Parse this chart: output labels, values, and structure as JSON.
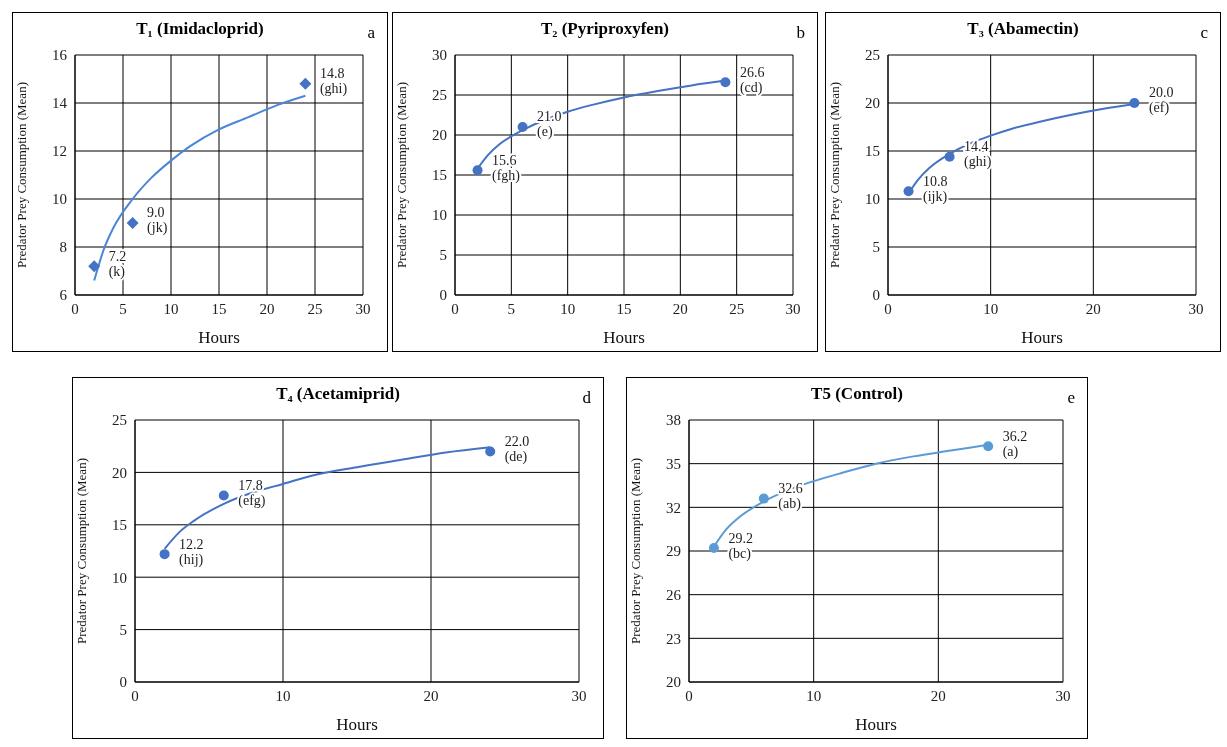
{
  "chart_data": [
    {
      "type": "scatter",
      "title": "T₁ (Imidacloprid)",
      "annotations": [
        "a"
      ],
      "xlabel": "Hours",
      "ylabel": "Predator Prey Consumption (Mean)",
      "x": [
        2,
        6,
        24
      ],
      "xlim": [
        0,
        30
      ],
      "xticks": [
        0,
        5,
        10,
        15,
        20,
        25,
        30
      ],
      "ylim": [
        6,
        16
      ],
      "yticks": [
        6,
        8,
        10,
        12,
        14,
        16
      ],
      "grid": true,
      "series": [
        {
          "color": "#4472c4",
          "marker": "diamond",
          "values": [
            7.2,
            9.0,
            14.8
          ],
          "value_labels": [
            "7.2\n(k)",
            "9.0\n(jk)",
            "14.8\n(ghi)"
          ]
        },
        {
          "type": "line",
          "marker": "none",
          "color": "#4a86d8",
          "x": [
            2,
            3,
            4,
            6,
            8,
            10,
            12,
            15,
            18,
            21,
            24
          ],
          "values": [
            6.6,
            7.9,
            8.8,
            10.0,
            10.9,
            11.6,
            12.2,
            12.9,
            13.4,
            13.9,
            14.3
          ]
        }
      ]
    },
    {
      "type": "scatter",
      "title": "T₂ (Pyriproxyfen)",
      "annotations": [
        "b"
      ],
      "xlabel": "Hours",
      "ylabel": "Predator Prey Consumption (Mean)",
      "x": [
        2,
        6,
        24
      ],
      "xlim": [
        0,
        30
      ],
      "xticks": [
        0,
        5,
        10,
        15,
        20,
        25,
        30
      ],
      "ylim": [
        0,
        30
      ],
      "yticks": [
        0,
        5,
        10,
        15,
        20,
        25,
        30
      ],
      "grid": true,
      "series": [
        {
          "color": "#4472c4",
          "marker": "circle",
          "values": [
            15.6,
            21.0,
            26.6
          ],
          "value_labels": [
            "15.6\n(fgh)",
            "21.0\n(e)",
            "26.6\n(cd)"
          ]
        },
        {
          "type": "line",
          "marker": "none",
          "color": "#4472c4",
          "x": [
            2,
            3,
            4,
            6,
            8,
            10,
            12,
            15,
            18,
            21,
            24
          ],
          "values": [
            15.8,
            17.6,
            18.9,
            20.6,
            21.9,
            22.9,
            23.7,
            24.7,
            25.5,
            26.2,
            26.8
          ]
        }
      ]
    },
    {
      "type": "scatter",
      "title": "T₃ (Abamectin)",
      "annotations": [
        "c"
      ],
      "xlabel": "Hours",
      "ylabel": "Predator Prey Consumption (Mean)",
      "x": [
        2,
        6,
        24
      ],
      "xlim": [
        0,
        30
      ],
      "xticks": [
        0,
        10,
        20,
        30
      ],
      "ylim": [
        0,
        25
      ],
      "yticks": [
        0,
        5,
        10,
        15,
        20,
        25
      ],
      "grid": true,
      "series": [
        {
          "color": "#4472c4",
          "marker": "circle",
          "values": [
            10.8,
            14.4,
            20.0
          ],
          "value_labels": [
            "10.8\n(ijk)",
            "14.4\n(ghi)",
            "20.0\n(ef)"
          ]
        },
        {
          "type": "line",
          "marker": "none",
          "color": "#4472c4",
          "x": [
            2,
            3,
            4,
            6,
            8,
            10,
            12,
            15,
            18,
            21,
            24
          ],
          "values": [
            10.6,
            12.1,
            13.2,
            14.7,
            15.8,
            16.6,
            17.3,
            18.1,
            18.8,
            19.4,
            19.9
          ]
        }
      ]
    },
    {
      "type": "scatter",
      "title": "T₄ (Acetamiprid)",
      "annotations": [
        "d"
      ],
      "xlabel": "Hours",
      "ylabel": "Predator Prey Consumption (Mean)",
      "x": [
        2,
        6,
        24
      ],
      "xlim": [
        0,
        30
      ],
      "xticks": [
        0,
        10,
        20,
        30
      ],
      "ylim": [
        0,
        25
      ],
      "yticks": [
        0,
        5,
        10,
        15,
        20,
        25
      ],
      "grid": true,
      "series": [
        {
          "color": "#4472c4",
          "marker": "circle",
          "values": [
            12.2,
            17.8,
            22.0
          ],
          "value_labels": [
            "12.2\n(hij)",
            "17.8\n(efg)",
            "22.0\n(de)"
          ]
        },
        {
          "type": "line",
          "marker": "none",
          "color": "#4472c4",
          "x": [
            2,
            3,
            4,
            6,
            8,
            10,
            12,
            15,
            18,
            21,
            24
          ],
          "values": [
            12.7,
            14.3,
            15.4,
            17.0,
            18.1,
            18.9,
            19.7,
            20.5,
            21.2,
            21.9,
            22.4
          ]
        }
      ]
    },
    {
      "type": "scatter",
      "title": "T5 (Control)",
      "annotations": [
        "e"
      ],
      "xlabel": "Hours",
      "ylabel": "Predator Prey Consumption (Mean)",
      "x": [
        2,
        6,
        24
      ],
      "xlim": [
        0,
        30
      ],
      "xticks": [
        0,
        10,
        20,
        30
      ],
      "ylim": [
        20,
        38
      ],
      "yticks": [
        20,
        23,
        26,
        29,
        32,
        35,
        38
      ],
      "grid": true,
      "series": [
        {
          "color": "#5b9bd5",
          "marker": "circle",
          "values": [
            29.2,
            32.6,
            36.2
          ],
          "value_labels": [
            "29.2\n(bc)",
            "32.6\n(ab)",
            "36.2\n(a)"
          ]
        },
        {
          "type": "line",
          "marker": "none",
          "color": "#5b9bd5",
          "x": [
            2,
            3,
            4,
            6,
            8,
            10,
            12,
            15,
            18,
            21,
            24
          ],
          "values": [
            29.3,
            30.5,
            31.3,
            32.4,
            33.2,
            33.8,
            34.3,
            35.0,
            35.5,
            35.9,
            36.3
          ]
        }
      ]
    }
  ]
}
